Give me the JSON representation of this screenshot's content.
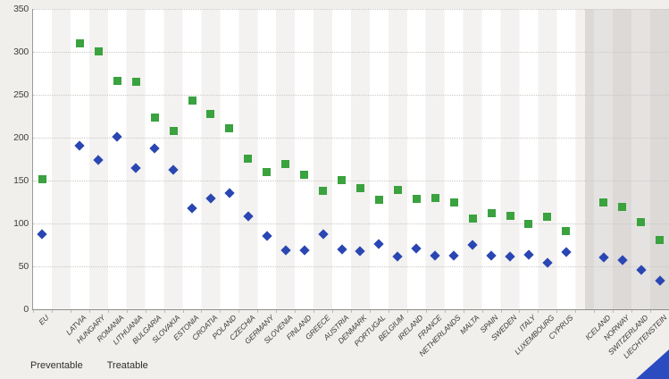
{
  "legend": {
    "items": [
      {
        "label": "Preventable",
        "marker": "square",
        "color": "#3aa23e"
      },
      {
        "label": "Treatable",
        "marker": "diamond",
        "color": "#2a46b2"
      }
    ]
  },
  "y_axis": {
    "tick_labels": [
      "350",
      "300",
      "250",
      "200",
      "150",
      "100",
      "50",
      "0"
    ],
    "max": 350,
    "step": 50
  },
  "chart_data": {
    "type": "scatter",
    "title": "",
    "xlabel": "",
    "ylabel": "",
    "ylim": [
      0,
      350
    ],
    "ytick_step": 50,
    "grid": "horizontal-dotted",
    "legend_position": "bottom-left",
    "columns_total": 34,
    "non_eu_shaded_region": [
      "ICELAND",
      "NORWAY",
      "SWITZERLAND",
      "LIECHTENSTEIN"
    ],
    "series": [
      {
        "name": "Preventable",
        "marker": "square",
        "color": "#3aa23e"
      },
      {
        "name": "Treatable",
        "marker": "diamond",
        "color": "#2a46b2"
      }
    ],
    "points": [
      {
        "country": "EU",
        "column": 0,
        "preventable": 152,
        "treatable": 88
      },
      {
        "country": "LATVIA",
        "column": 2,
        "preventable": 310,
        "treatable": 191
      },
      {
        "country": "HUNGARY",
        "column": 3,
        "preventable": 301,
        "treatable": 174
      },
      {
        "country": "ROMANIA",
        "column": 4,
        "preventable": 266,
        "treatable": 201
      },
      {
        "country": "LITHUANIA",
        "column": 5,
        "preventable": 265,
        "treatable": 165
      },
      {
        "country": "BULGARIA",
        "column": 6,
        "preventable": 223,
        "treatable": 188
      },
      {
        "country": "SLOVAKIA",
        "column": 7,
        "preventable": 208,
        "treatable": 163
      },
      {
        "country": "ESTONIA",
        "column": 8,
        "preventable": 243,
        "treatable": 118
      },
      {
        "country": "CROATIA",
        "column": 9,
        "preventable": 228,
        "treatable": 129
      },
      {
        "country": "POLAND",
        "column": 10,
        "preventable": 211,
        "treatable": 135
      },
      {
        "country": "CZECHIA",
        "column": 11,
        "preventable": 176,
        "treatable": 108
      },
      {
        "country": "GERMANY",
        "column": 12,
        "preventable": 160,
        "treatable": 85
      },
      {
        "country": "SLOVENIA",
        "column": 13,
        "preventable": 169,
        "treatable": 69
      },
      {
        "country": "FINLAND",
        "column": 14,
        "preventable": 157,
        "treatable": 69
      },
      {
        "country": "GREECE",
        "column": 15,
        "preventable": 138,
        "treatable": 87
      },
      {
        "country": "AUSTRIA",
        "column": 16,
        "preventable": 151,
        "treatable": 70
      },
      {
        "country": "DENMARK",
        "column": 17,
        "preventable": 141,
        "treatable": 68
      },
      {
        "country": "PORTUGAL",
        "column": 18,
        "preventable": 128,
        "treatable": 76
      },
      {
        "country": "BELGIUM",
        "column": 19,
        "preventable": 139,
        "treatable": 61
      },
      {
        "country": "IRELAND",
        "column": 20,
        "preventable": 129,
        "treatable": 71
      },
      {
        "country": "FRANCE",
        "column": 21,
        "preventable": 130,
        "treatable": 62
      },
      {
        "country": "NETHERLANDS",
        "column": 22,
        "preventable": 125,
        "treatable": 62
      },
      {
        "country": "MALTA",
        "column": 23,
        "preventable": 106,
        "treatable": 75
      },
      {
        "country": "SPAIN",
        "column": 24,
        "preventable": 112,
        "treatable": 62
      },
      {
        "country": "SWEDEN",
        "column": 25,
        "preventable": 109,
        "treatable": 61
      },
      {
        "country": "ITALY",
        "column": 26,
        "preventable": 100,
        "treatable": 64
      },
      {
        "country": "LUXEMBOURG",
        "column": 27,
        "preventable": 108,
        "treatable": 54
      },
      {
        "country": "CYPRUS",
        "column": 28,
        "preventable": 91,
        "treatable": 67
      },
      {
        "country": "ICELAND",
        "column": 30,
        "preventable": 125,
        "treatable": 60
      },
      {
        "country": "NORWAY",
        "column": 31,
        "preventable": 119,
        "treatable": 57
      },
      {
        "country": "SWITZERLAND",
        "column": 32,
        "preventable": 102,
        "treatable": 46
      },
      {
        "country": "LIECHTENSTEIN",
        "column": 33,
        "preventable": 81,
        "treatable": 33
      }
    ]
  },
  "colors": {
    "preventable": "#3aa23e",
    "treatable": "#2a46b2",
    "non_eu_overlay": "rgba(160,156,150,0.28)",
    "corner_ribbon": "#2b4cc1"
  }
}
